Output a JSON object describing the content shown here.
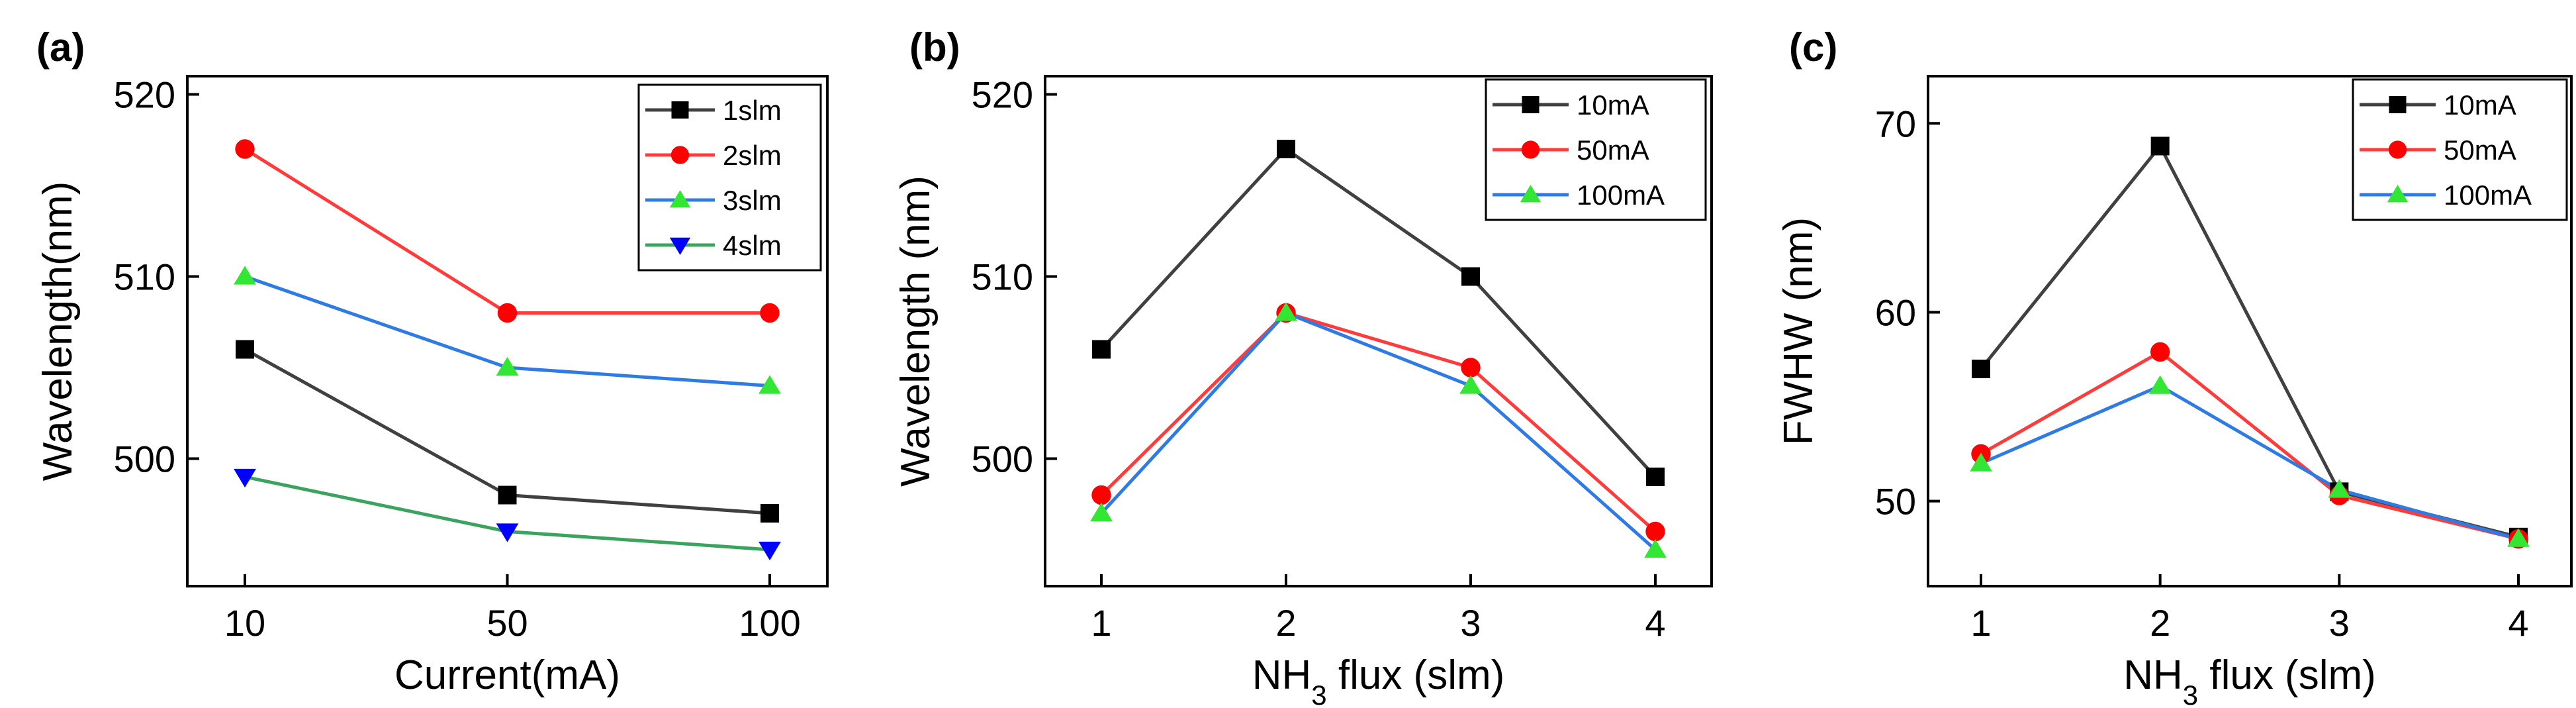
{
  "figure": {
    "panels_count": 3
  },
  "chart_data": [
    {
      "panel_label": "(a)",
      "type": "line",
      "categories": [
        "10",
        "50",
        "100"
      ],
      "xlabel": "Current(mA)",
      "ylabel": "Wavelength(nm)",
      "ylim": [
        493,
        521
      ],
      "yticks": [
        500,
        510,
        520
      ],
      "yticklabels": [
        "500",
        "510",
        "520"
      ],
      "grid": false,
      "legend_position": "top-right",
      "series": [
        {
          "name": "1slm",
          "marker": "square",
          "color": "#404040",
          "marker_color": "#000000",
          "values": [
            506,
            498,
            497
          ]
        },
        {
          "name": "2slm",
          "marker": "circle",
          "color": "#ff3b3b",
          "marker_color": "#ff0000",
          "values": [
            517,
            508,
            508
          ]
        },
        {
          "name": "3slm",
          "marker": "triangle-up",
          "color": "#2e7be6",
          "marker_color": "#33e633",
          "values": [
            510,
            505,
            504
          ]
        },
        {
          "name": "4slm",
          "marker": "triangle-down",
          "color": "#3aa35e",
          "marker_color": "#0000ff",
          "values": [
            499,
            496,
            495
          ]
        }
      ]
    },
    {
      "panel_label": "(b)",
      "type": "line",
      "categories": [
        "1",
        "2",
        "3",
        "4"
      ],
      "xlabel": "NH",
      "xlabel_sub": "3",
      "xlabel_suffix": " flux (slm)",
      "ylabel": "Wavelength (nm)",
      "ylim": [
        493,
        521
      ],
      "yticks": [
        500,
        510,
        520
      ],
      "yticklabels": [
        "500",
        "510",
        "520"
      ],
      "grid": false,
      "legend_position": "top-right",
      "series": [
        {
          "name": "10mA",
          "marker": "square",
          "color": "#404040",
          "marker_color": "#000000",
          "values": [
            506,
            517,
            510,
            499
          ]
        },
        {
          "name": "50mA",
          "marker": "circle",
          "color": "#ff3b3b",
          "marker_color": "#ff0000",
          "values": [
            498,
            508,
            505,
            496
          ]
        },
        {
          "name": "100mA",
          "marker": "triangle-up",
          "color": "#2e7be6",
          "marker_color": "#33e633",
          "values": [
            497,
            508,
            504,
            495
          ]
        }
      ]
    },
    {
      "panel_label": "(c)",
      "type": "line",
      "categories": [
        "1",
        "2",
        "3",
        "4"
      ],
      "xlabel": "NH",
      "xlabel_sub": "3",
      "xlabel_suffix": " flux (slm)",
      "ylabel": "FWHW (nm)",
      "ylim": [
        45.5,
        72.5
      ],
      "yticks": [
        50,
        60,
        70
      ],
      "yticklabels": [
        "50",
        "60",
        "70"
      ],
      "grid": false,
      "legend_position": "top-right",
      "series": [
        {
          "name": "10mA",
          "marker": "square",
          "color": "#404040",
          "marker_color": "#000000",
          "values": [
            57,
            68.8,
            50.5,
            48.1
          ]
        },
        {
          "name": "50mA",
          "marker": "circle",
          "color": "#ff3b3b",
          "marker_color": "#ff0000",
          "values": [
            52.5,
            57.9,
            50.3,
            48
          ]
        },
        {
          "name": "100mA",
          "marker": "triangle-up",
          "color": "#2e7be6",
          "marker_color": "#33e633",
          "values": [
            52,
            56.1,
            50.6,
            48
          ]
        }
      ]
    }
  ]
}
